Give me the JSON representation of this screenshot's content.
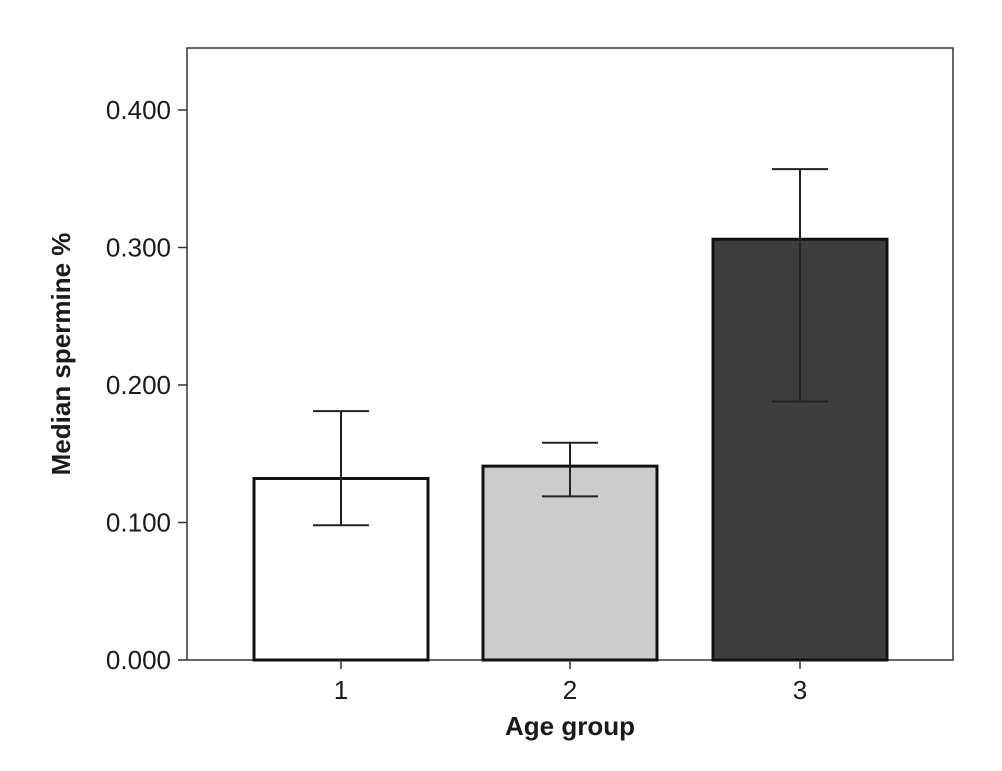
{
  "chart_data": {
    "type": "bar",
    "title": "",
    "xlabel": "Age group",
    "ylabel": "Median spermine %",
    "categories": [
      "1",
      "2",
      "3"
    ],
    "series": [
      {
        "values": [
          0.132,
          0.141,
          0.306
        ],
        "error_low": [
          0.098,
          0.119,
          0.188
        ],
        "error_high": [
          0.181,
          0.158,
          0.357
        ],
        "colors": [
          "#ffffff",
          "#cccccc",
          "#3d3d3d"
        ]
      }
    ],
    "ylim": [
      0,
      0.44
    ],
    "yticks": [
      0,
      0.1,
      0.2,
      0.3,
      0.4
    ],
    "ytick_labels": [
      "0.000",
      "0.100",
      "0.200",
      "0.300",
      "0.400"
    ],
    "grid": false,
    "legend": "none",
    "bar_edge_color": "#111111"
  }
}
